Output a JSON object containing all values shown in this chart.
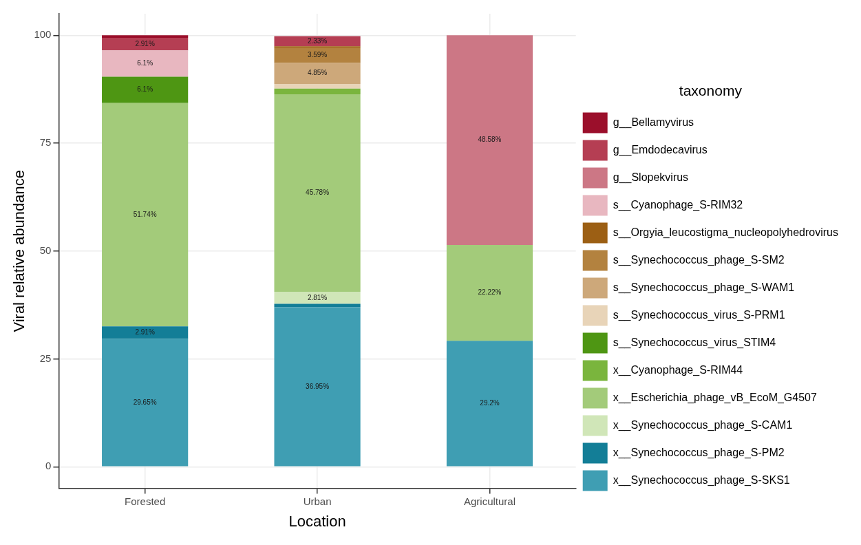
{
  "chart_data": {
    "type": "bar",
    "stacked": true,
    "xlabel": "Location",
    "ylabel": "Viral relative abundance",
    "legend_title": "taxonomy",
    "legend": "right",
    "grid": true,
    "categories": [
      "Forested",
      "Urban",
      "Agricultural"
    ],
    "ylim": [
      -5,
      105
    ],
    "yticks": [
      0,
      25,
      50,
      75,
      100
    ],
    "series": [
      {
        "name": "x__Synechococcus_phage_S-SKS1",
        "color": "#3f9eb3",
        "values": [
          29.65,
          36.95,
          29.2
        ],
        "value_labels": [
          "29.65%",
          "36.95%",
          "29.2%"
        ]
      },
      {
        "name": "x__Synechococcus_phage_S-PM2",
        "color": "#137e97",
        "values": [
          2.91,
          0.8,
          0
        ],
        "value_labels": [
          "2.91%",
          null,
          null
        ]
      },
      {
        "name": "x__Synechococcus_phage_S-CAM1",
        "color": "#d0e6b8",
        "values": [
          0,
          2.81,
          0
        ],
        "value_labels": [
          null,
          "2.81%",
          null
        ]
      },
      {
        "name": "x__Escherichia_phage_vB_EcoM_G4507",
        "color": "#a3cb7a",
        "values": [
          51.74,
          45.78,
          22.22
        ],
        "value_labels": [
          "51.74%",
          "45.78%",
          "22.22%"
        ]
      },
      {
        "name": "x__Cyanophage_S-RIM44",
        "color": "#7ab53d",
        "values": [
          0,
          1.3,
          0
        ],
        "value_labels": [
          null,
          null,
          null
        ]
      },
      {
        "name": "s__Synechococcus_virus_STIM4",
        "color": "#4e9613",
        "values": [
          6.1,
          0,
          0
        ],
        "value_labels": [
          "6.1%",
          null,
          null
        ]
      },
      {
        "name": "s__Synechococcus_virus_S-PRM1",
        "color": "#e8d4b8",
        "values": [
          0,
          1.1,
          0
        ],
        "value_labels": [
          null,
          null,
          null
        ]
      },
      {
        "name": "s__Synechococcus_phage_S-WAM1",
        "color": "#cda87a",
        "values": [
          0,
          4.85,
          0
        ],
        "value_labels": [
          null,
          "4.85%",
          null
        ]
      },
      {
        "name": "s__Synechococcus_phage_S-SM2",
        "color": "#b3823f",
        "values": [
          0,
          3.59,
          0
        ],
        "value_labels": [
          null,
          "3.59%",
          null
        ]
      },
      {
        "name": "s__Orgyia_leucostigma_nucleopolyhedrovirus",
        "color": "#9c5f14",
        "values": [
          0,
          0.3,
          0
        ],
        "value_labels": [
          null,
          null,
          null
        ]
      },
      {
        "name": "s__Cyanophage_S-RIM32",
        "color": "#e8b7c0",
        "values": [
          6.1,
          null,
          0
        ],
        "value_labels": [
          "6.1%",
          null,
          null
        ]
      },
      {
        "name": "g__Slopekvirus",
        "color": "#cc7785",
        "values": [
          0,
          0,
          48.58
        ],
        "value_labels": [
          null,
          null,
          "48.58%"
        ]
      },
      {
        "name": "g__Emdodecavirus",
        "color": "#b53e53",
        "values": [
          2.91,
          2.33,
          0
        ],
        "value_labels": [
          "2.91%",
          "2.33%",
          null
        ]
      },
      {
        "name": "g__Bellamyvirus",
        "color": "#9b0f2b",
        "values": [
          0.6,
          0,
          0
        ],
        "value_labels": [
          null,
          null,
          null
        ]
      }
    ]
  }
}
